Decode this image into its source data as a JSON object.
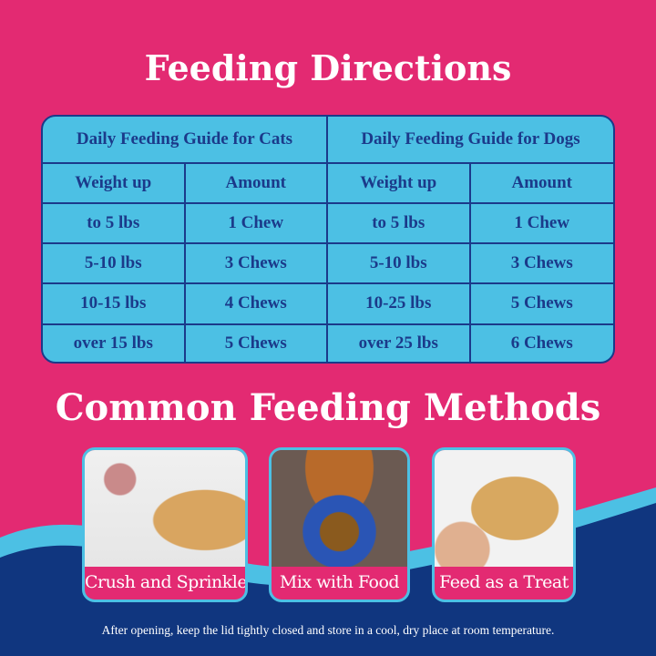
{
  "title": "Feeding Directions",
  "table": {
    "cats_header": "Daily Feeding Guide for Cats",
    "dogs_header": "Daily Feeding Guide for Dogs",
    "col_weight": "Weight up",
    "col_amount": "Amount",
    "cats": [
      [
        "to 5 lbs",
        "1 Chew"
      ],
      [
        "5-10 lbs",
        "3 Chews"
      ],
      [
        "10-15 lbs",
        "4 Chews"
      ],
      [
        "over 15 lbs",
        "5 Chews"
      ]
    ],
    "dogs": [
      [
        "to 5 lbs",
        "1 Chew"
      ],
      [
        "5-10 lbs",
        "3 Chews"
      ],
      [
        "10-25 lbs",
        "5 Chews"
      ],
      [
        "over 25 lbs",
        "6 Chews"
      ]
    ]
  },
  "methods_title": "Common Feeding Methods",
  "methods": [
    {
      "label": "Crush and Sprinkle"
    },
    {
      "label": "Mix with Food"
    },
    {
      "label": "Feed as a Treat"
    }
  ],
  "note": "After opening, keep the lid tightly closed and store in a cool, dry place at room temperature.",
  "colors": {
    "pink": "#e32a72",
    "light_blue": "#4cc0e4",
    "navy": "#1b3a8a"
  }
}
